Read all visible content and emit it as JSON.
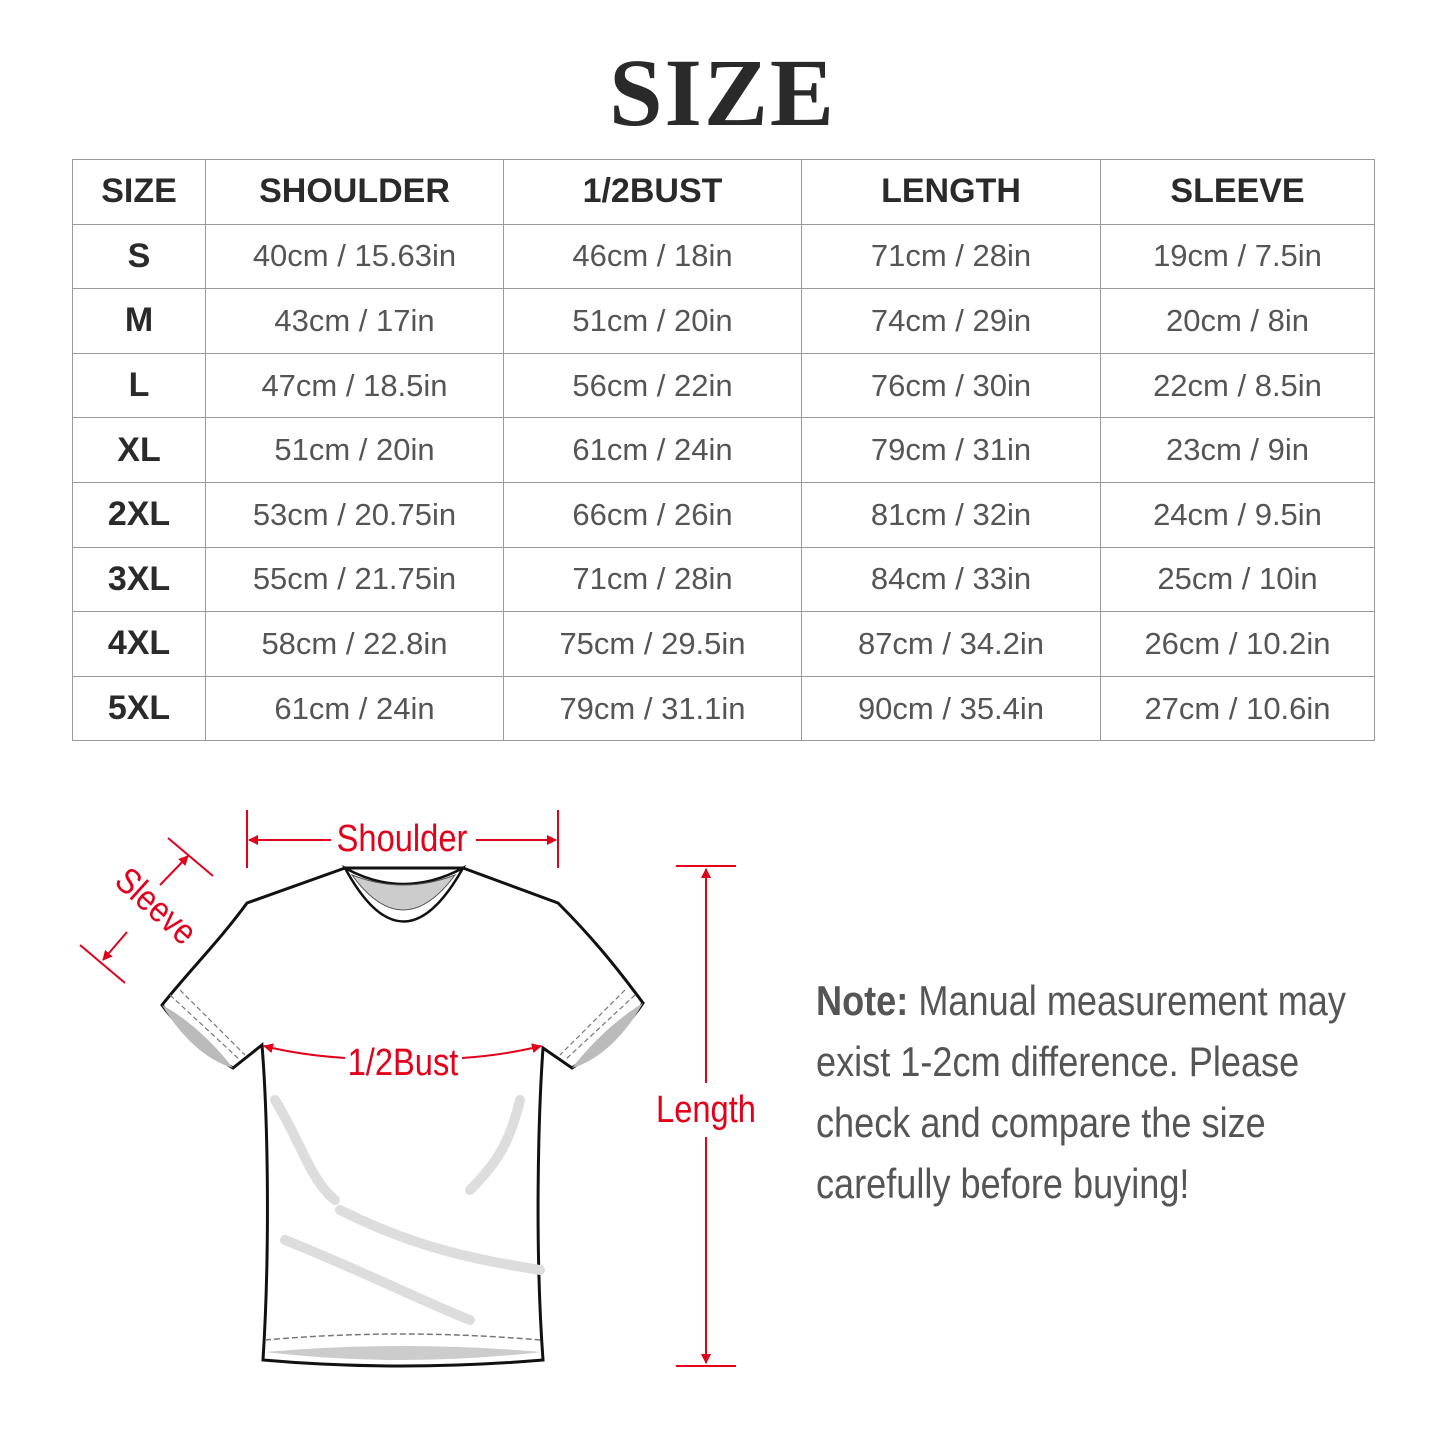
{
  "title": "SIZE",
  "table": {
    "headers": [
      "SIZE",
      "SHOULDER",
      "1/2BUST",
      "LENGTH",
      "SLEEVE"
    ],
    "rows": [
      [
        "S",
        "40cm / 15.63in",
        "46cm / 18in",
        "71cm / 28in",
        "19cm / 7.5in"
      ],
      [
        "M",
        "43cm / 17in",
        "51cm / 20in",
        "74cm / 29in",
        "20cm / 8in"
      ],
      [
        "L",
        "47cm / 18.5in",
        "56cm / 22in",
        "76cm / 30in",
        "22cm / 8.5in"
      ],
      [
        "XL",
        "51cm / 20in",
        "61cm / 24in",
        "79cm / 31in",
        "23cm / 9in"
      ],
      [
        "2XL",
        "53cm / 20.75in",
        "66cm / 26in",
        "81cm / 32in",
        "24cm / 9.5in"
      ],
      [
        "3XL",
        "55cm / 21.75in",
        "71cm / 28in",
        "84cm / 33in",
        "25cm / 10in"
      ],
      [
        "4XL",
        "58cm / 22.8in",
        "75cm / 29.5in",
        "87cm / 34.2in",
        "26cm / 10.2in"
      ],
      [
        "5XL",
        "61cm / 24in",
        "79cm / 31.1in",
        "90cm / 35.4in",
        "27cm / 10.6in"
      ]
    ]
  },
  "diagram": {
    "shoulder": "Shoulder",
    "sleeve": "Sleeve",
    "bust": "1/2Bust",
    "length": "Length",
    "accent_color": "#e3001b"
  },
  "note": {
    "label": "Note:",
    "lines": [
      " Manual measurement may",
      "exist 1-2cm difference. Please",
      "check and compare the size",
      "carefully before buying!"
    ]
  }
}
